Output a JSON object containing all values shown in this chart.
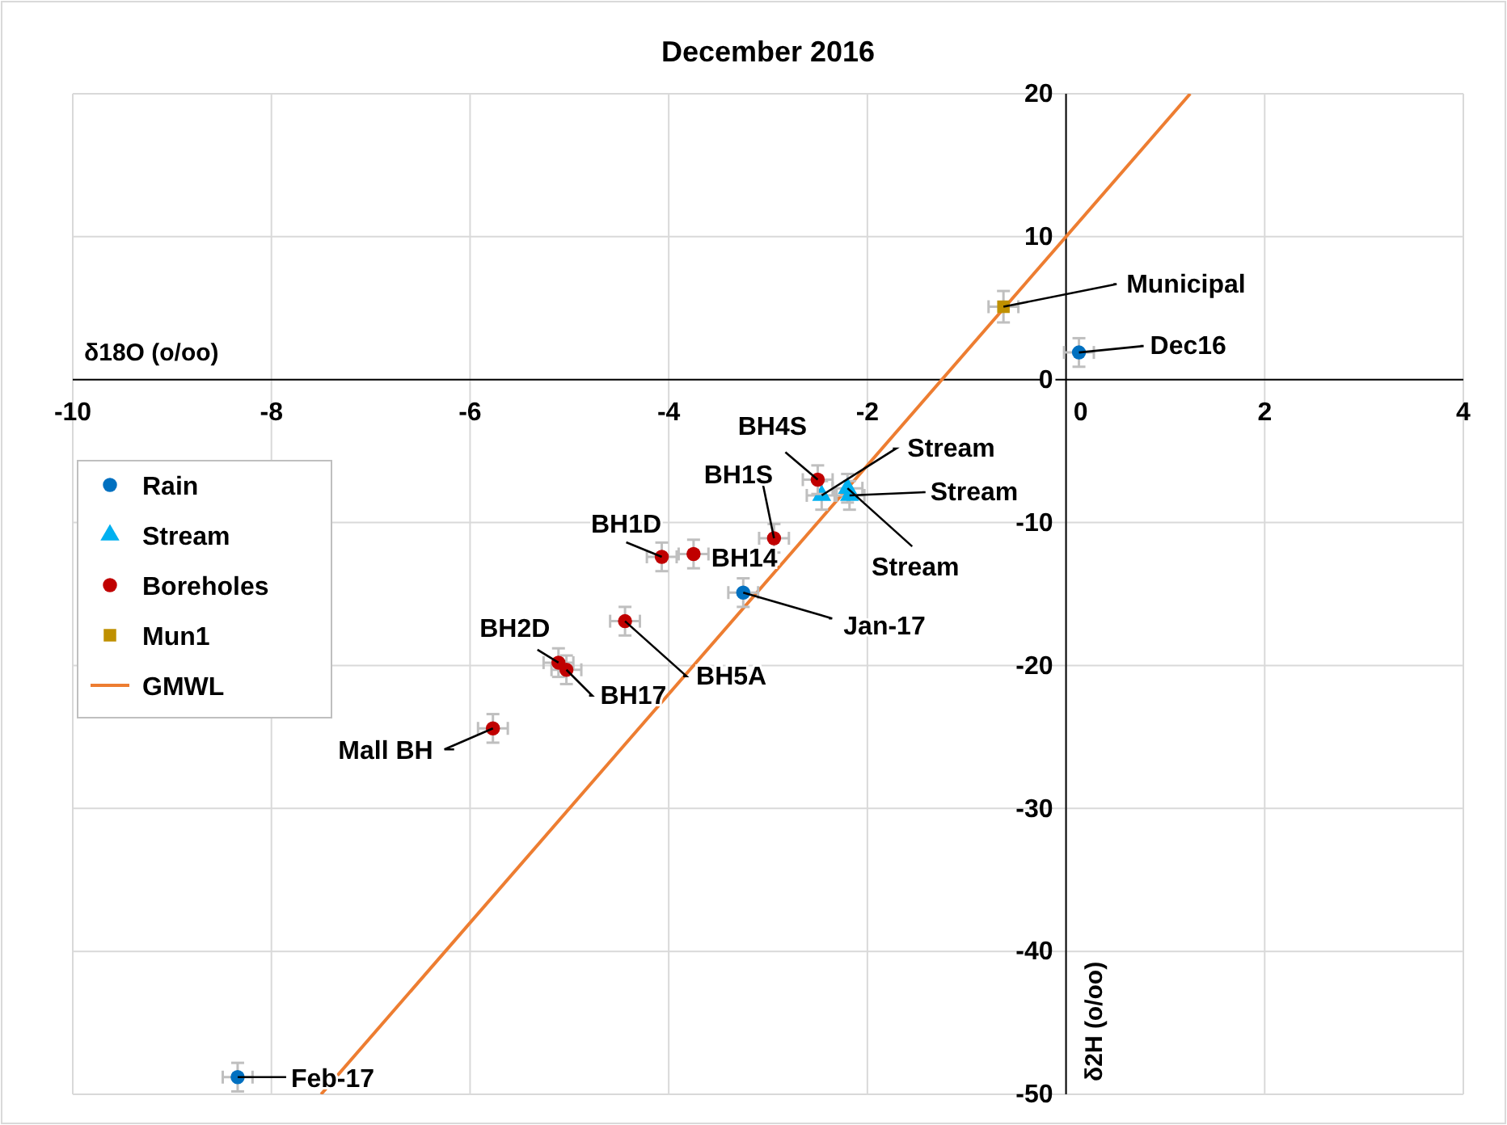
{
  "chart_data": {
    "type": "scatter",
    "title": "December 2016",
    "xlabel": "δ18O (o/oo)",
    "ylabel": "δ2H (o/oo)",
    "xlim": [
      -10,
      4
    ],
    "xticks": [
      -10,
      -8,
      -6,
      -4,
      -2,
      0,
      2,
      4
    ],
    "ylim": [
      -50,
      20
    ],
    "yticks": [
      -50,
      -40,
      -30,
      -20,
      -10,
      0,
      10,
      20
    ],
    "grid": true,
    "legend": "left",
    "series": [
      {
        "name": "Rain",
        "marker": "circle",
        "color": "#0070c0",
        "x": [
          0.13,
          -8.34,
          -3.25
        ],
        "values": [
          1.9,
          -48.8,
          -14.9
        ],
        "errors": [
          1,
          1,
          1
        ],
        "xerrors": [
          0.15,
          0.15,
          0.15
        ]
      },
      {
        "name": "Stream",
        "marker": "triangle",
        "color": "#00b0f0",
        "x": [
          -2.46,
          -2.18,
          -2.2
        ],
        "values": [
          -8.1,
          -8.1,
          -7.6
        ],
        "errors": [
          1,
          1,
          1
        ],
        "xerrors": [
          0.15,
          0.15,
          0.15
        ]
      },
      {
        "name": "Boreholes",
        "marker": "circle",
        "color": "#c00000",
        "x": [
          -2.5,
          -2.94,
          -4.07,
          -3.75,
          -4.44,
          -5.11,
          -5.03,
          -5.77
        ],
        "values": [
          -7.0,
          -11.1,
          -12.4,
          -12.2,
          -16.9,
          -19.8,
          -20.3,
          -24.4
        ],
        "errors": [
          1,
          1,
          1,
          1,
          1,
          1,
          1,
          1
        ],
        "xerrors": [
          0.15,
          0.15,
          0.15,
          0.15,
          0.15,
          0.15,
          0.15,
          0.15
        ]
      },
      {
        "name": "Mun1",
        "marker": "square",
        "color": "#bf9000",
        "x": [
          -0.63
        ],
        "values": [
          5.1
        ],
        "errors": [
          1.1
        ],
        "xerrors": [
          0.15
        ]
      },
      {
        "name": "GMWL",
        "type": "line",
        "color": "#ed7d31",
        "x": [
          -7.5,
          1.25
        ],
        "values": [
          -50,
          20
        ]
      }
    ],
    "annotations": [
      {
        "text": "Dec16",
        "x": 0.13,
        "y": 1.9
      },
      {
        "text": "Feb-17",
        "x": -8.34,
        "y": -48.8
      },
      {
        "text": "Jan-17",
        "x": -3.25,
        "y": -14.9
      },
      {
        "text": "Stream",
        "x": -2.46,
        "y": -8.1
      },
      {
        "text": "Stream",
        "x": -2.18,
        "y": -8.1
      },
      {
        "text": "Stream",
        "x": -2.2,
        "y": -7.6
      },
      {
        "text": "BH4S",
        "x": -2.5,
        "y": -7.0
      },
      {
        "text": "BH1S",
        "x": -2.94,
        "y": -11.1
      },
      {
        "text": "BH1D",
        "x": -4.07,
        "y": -12.4
      },
      {
        "text": "BH14",
        "x": -3.75,
        "y": -12.2
      },
      {
        "text": "BH5A",
        "x": -4.44,
        "y": -16.9
      },
      {
        "text": "BH2D",
        "x": -5.11,
        "y": -19.8
      },
      {
        "text": "BH17",
        "x": -5.03,
        "y": -20.3
      },
      {
        "text": "Mall BH",
        "x": -5.77,
        "y": -24.4
      },
      {
        "text": "Municipal",
        "x": -0.63,
        "y": 5.1
      }
    ]
  }
}
